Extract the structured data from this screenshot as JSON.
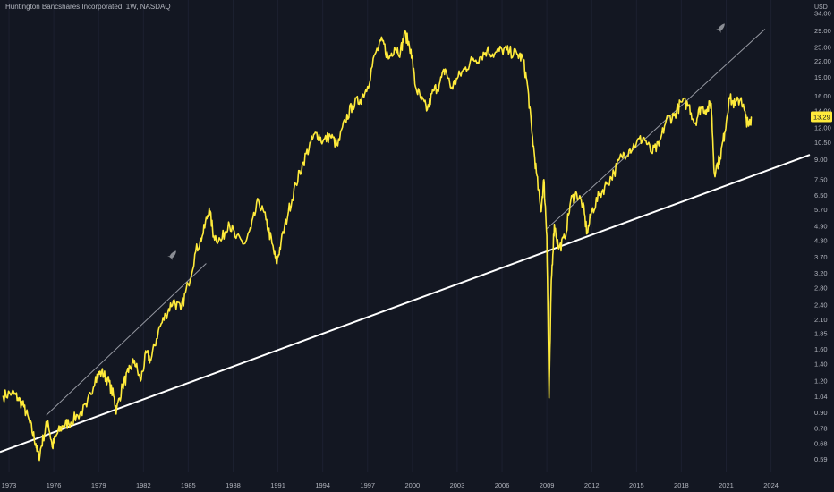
{
  "header": {
    "title": "Huntington Bancshares Incorporated, 1W, NASDAQ"
  },
  "colors": {
    "background": "#131722",
    "price_line": "#ffeb3b",
    "trendline": "#ffffff",
    "thin_trendline": "#9598a1",
    "axis_text": "#b2b5be"
  },
  "icons": [
    "rocket-icon",
    "rocket-icon"
  ],
  "chart_data": {
    "type": "line",
    "title": "Huntington Bancshares Incorporated, 1W, NASDAQ",
    "y_unit": "USD",
    "y_scale": "log",
    "ylim": [
      0.55,
      36
    ],
    "xlim": [
      1972.4,
      2026.6
    ],
    "x_ticks": [
      "1973",
      "1976",
      "1979",
      "1982",
      "1985",
      "1988",
      "1991",
      "1994",
      "1997",
      "2000",
      "2003",
      "2006",
      "2009",
      "2012",
      "2015",
      "2018",
      "2021",
      "2024"
    ],
    "y_ticks": [
      "34.00",
      "29.00",
      "25.00",
      "22.00",
      "19.00",
      "16.00",
      "14.00",
      "12.00",
      "10.50",
      "9.00",
      "7.50",
      "6.50",
      "5.70",
      "4.90",
      "4.30",
      "3.70",
      "3.20",
      "2.80",
      "2.40",
      "2.10",
      "1.85",
      "1.60",
      "1.40",
      "1.20",
      "1.04",
      "0.90",
      "0.78",
      "0.68",
      "0.59"
    ],
    "last_price": "13.29",
    "series": [
      {
        "points": [
          [
            1972.6,
            1.05
          ],
          [
            1973.2,
            1.08
          ],
          [
            1973.6,
            1.03
          ],
          [
            1974.0,
            0.95
          ],
          [
            1974.4,
            0.82
          ],
          [
            1974.8,
            0.68
          ],
          [
            1975.0,
            0.6
          ],
          [
            1975.3,
            0.72
          ],
          [
            1975.6,
            0.84
          ],
          [
            1975.9,
            0.66
          ],
          [
            1976.2,
            0.74
          ],
          [
            1976.6,
            0.8
          ],
          [
            1977.0,
            0.82
          ],
          [
            1977.6,
            0.88
          ],
          [
            1978.2,
            0.95
          ],
          [
            1978.8,
            1.25
          ],
          [
            1979.2,
            1.3
          ],
          [
            1979.6,
            1.22
          ],
          [
            1980.0,
            1.05
          ],
          [
            1980.2,
            0.92
          ],
          [
            1980.6,
            1.15
          ],
          [
            1981.0,
            1.3
          ],
          [
            1981.4,
            1.45
          ],
          [
            1981.8,
            1.2
          ],
          [
            1982.2,
            1.55
          ],
          [
            1982.5,
            1.45
          ],
          [
            1983.0,
            1.9
          ],
          [
            1983.5,
            2.2
          ],
          [
            1984.0,
            2.5
          ],
          [
            1984.5,
            2.3
          ],
          [
            1985.0,
            2.9
          ],
          [
            1985.5,
            3.9
          ],
          [
            1986.0,
            4.6
          ],
          [
            1986.4,
            5.8
          ],
          [
            1986.7,
            4.5
          ],
          [
            1987.2,
            4.3
          ],
          [
            1987.7,
            5.1
          ],
          [
            1988.2,
            4.4
          ],
          [
            1988.8,
            4.2
          ],
          [
            1989.2,
            4.8
          ],
          [
            1989.7,
            6.2
          ],
          [
            1990.2,
            5.2
          ],
          [
            1990.6,
            4.2
          ],
          [
            1990.9,
            3.5
          ],
          [
            1991.2,
            4.2
          ],
          [
            1991.7,
            5.6
          ],
          [
            1992.2,
            7.2
          ],
          [
            1992.7,
            8.8
          ],
          [
            1993.2,
            10.5
          ],
          [
            1993.6,
            11.5
          ],
          [
            1994.0,
            10.6
          ],
          [
            1994.5,
            11.2
          ],
          [
            1995.0,
            10.2
          ],
          [
            1995.5,
            12.8
          ],
          [
            1996.0,
            14.8
          ],
          [
            1996.5,
            15.5
          ],
          [
            1997.0,
            17.5
          ],
          [
            1997.5,
            23.5
          ],
          [
            1998.0,
            26.5
          ],
          [
            1998.4,
            22.5
          ],
          [
            1998.8,
            25.0
          ],
          [
            1999.2,
            24.0
          ],
          [
            1999.5,
            28.5
          ],
          [
            1999.9,
            24.5
          ],
          [
            2000.2,
            17.5
          ],
          [
            2000.6,
            15.5
          ],
          [
            2001.0,
            14.2
          ],
          [
            2001.4,
            16.8
          ],
          [
            2001.8,
            17.8
          ],
          [
            2002.2,
            20.5
          ],
          [
            2002.6,
            17.2
          ],
          [
            2003.0,
            18.8
          ],
          [
            2003.5,
            20.5
          ],
          [
            2004.0,
            22.2
          ],
          [
            2004.5,
            22.8
          ],
          [
            2005.0,
            24.3
          ],
          [
            2005.5,
            23.5
          ],
          [
            2006.0,
            24.5
          ],
          [
            2006.5,
            24.0
          ],
          [
            2007.0,
            23.5
          ],
          [
            2007.4,
            22.5
          ],
          [
            2007.7,
            17.8
          ],
          [
            2008.0,
            11.5
          ],
          [
            2008.3,
            8.0
          ],
          [
            2008.6,
            5.6
          ],
          [
            2008.8,
            7.5
          ],
          [
            2009.0,
            4.5
          ],
          [
            2009.15,
            1.03
          ],
          [
            2009.3,
            3.0
          ],
          [
            2009.5,
            5.0
          ],
          [
            2009.8,
            4.0
          ],
          [
            2010.2,
            4.4
          ],
          [
            2010.6,
            6.2
          ],
          [
            2011.0,
            6.6
          ],
          [
            2011.4,
            6.0
          ],
          [
            2011.7,
            4.6
          ],
          [
            2012.0,
            5.6
          ],
          [
            2012.5,
            6.5
          ],
          [
            2013.0,
            7.2
          ],
          [
            2013.5,
            8.0
          ],
          [
            2014.0,
            9.3
          ],
          [
            2014.5,
            9.8
          ],
          [
            2015.0,
            10.5
          ],
          [
            2015.5,
            11.0
          ],
          [
            2016.0,
            9.6
          ],
          [
            2016.5,
            10.2
          ],
          [
            2017.0,
            13.0
          ],
          [
            2017.5,
            13.4
          ],
          [
            2018.0,
            15.2
          ],
          [
            2018.5,
            14.8
          ],
          [
            2018.9,
            12.5
          ],
          [
            2019.3,
            14.5
          ],
          [
            2019.7,
            14.2
          ],
          [
            2020.0,
            15.0
          ],
          [
            2020.2,
            8.0
          ],
          [
            2020.6,
            9.2
          ],
          [
            2020.9,
            11.5
          ],
          [
            2021.2,
            15.8
          ],
          [
            2021.6,
            14.8
          ],
          [
            2022.0,
            15.8
          ],
          [
            2022.3,
            13.2
          ],
          [
            2022.5,
            12.2
          ],
          [
            2022.7,
            13.29
          ]
        ]
      }
    ],
    "trendlines": [
      {
        "from": [
          1972.4,
          0.63
        ],
        "to": [
          2026.6,
          9.4
        ]
      },
      {
        "from": [
          1975.5,
          0.88
        ],
        "to": [
          1986.2,
          3.5
        ]
      },
      {
        "from": [
          2009.0,
          4.8
        ],
        "to": [
          2023.6,
          29.5
        ]
      }
    ]
  }
}
